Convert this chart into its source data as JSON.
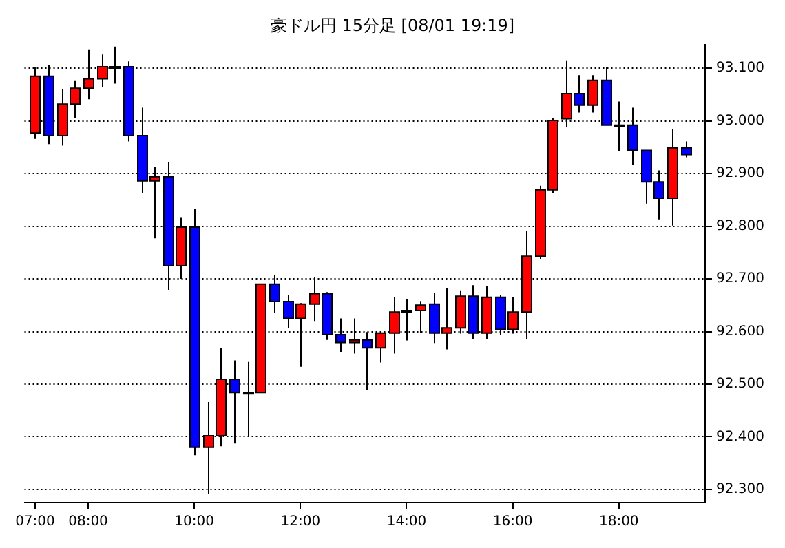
{
  "chart_data": {
    "type": "candlestick",
    "title": "豪ドル円 15分足 [08/01 19:19]",
    "x": [
      7,
      7.25,
      7.5,
      7.75,
      8,
      8.25,
      8.5,
      8.75,
      9,
      9.25,
      9.5,
      9.75,
      10,
      10.25,
      10.5,
      10.75,
      11,
      11.25,
      11.5,
      11.75,
      12,
      12.25,
      12.5,
      12.75,
      13,
      13.25,
      13.5,
      13.75,
      14,
      14.25,
      14.5,
      14.75,
      15,
      15.25,
      15.5,
      15.75,
      16,
      16.25,
      16.5,
      16.75,
      17,
      17.25,
      17.5,
      17.75,
      18,
      18.25,
      18.5,
      18.75,
      19,
      19.25
    ],
    "ohlc": [
      [
        92.977,
        93.103,
        92.966,
        93.085
      ],
      [
        93.085,
        93.106,
        92.956,
        92.972
      ],
      [
        92.972,
        93.06,
        92.953,
        93.032
      ],
      [
        93.032,
        93.077,
        93.006,
        93.062
      ],
      [
        93.062,
        93.136,
        93.041,
        93.08
      ],
      [
        93.08,
        93.126,
        93.064,
        93.103
      ],
      [
        93.103,
        93.141,
        93.071,
        93.103
      ],
      [
        93.103,
        93.113,
        92.961,
        92.972
      ],
      [
        92.972,
        93.025,
        92.863,
        92.886
      ],
      [
        92.886,
        92.912,
        92.777,
        92.894
      ],
      [
        92.894,
        92.922,
        92.679,
        92.725
      ],
      [
        92.725,
        92.817,
        92.7,
        92.798
      ],
      [
        92.798,
        92.832,
        92.365,
        92.38
      ],
      [
        92.38,
        92.466,
        92.292,
        92.402
      ],
      [
        92.402,
        92.568,
        92.382,
        92.509
      ],
      [
        92.509,
        92.545,
        92.387,
        92.484
      ],
      [
        92.484,
        92.542,
        92.401,
        92.484
      ],
      [
        92.484,
        92.69,
        92.484,
        92.69
      ],
      [
        92.69,
        92.708,
        92.636,
        92.657
      ],
      [
        92.657,
        92.67,
        92.606,
        92.625
      ],
      [
        92.625,
        92.654,
        92.533,
        92.652
      ],
      [
        92.652,
        92.703,
        92.62,
        92.672
      ],
      [
        92.672,
        92.675,
        92.584,
        92.594
      ],
      [
        92.594,
        92.625,
        92.561,
        92.579
      ],
      [
        92.579,
        92.625,
        92.558,
        92.584
      ],
      [
        92.584,
        92.599,
        92.489,
        92.569
      ],
      [
        92.569,
        92.597,
        92.541,
        92.597
      ],
      [
        92.597,
        92.666,
        92.558,
        92.637
      ],
      [
        92.637,
        92.661,
        92.583,
        92.639
      ],
      [
        92.64,
        92.658,
        92.597,
        92.65
      ],
      [
        92.652,
        92.673,
        92.578,
        92.597
      ],
      [
        92.597,
        92.682,
        92.566,
        92.607
      ],
      [
        92.607,
        92.678,
        92.596,
        92.667
      ],
      [
        92.667,
        92.688,
        92.586,
        92.597
      ],
      [
        92.597,
        92.686,
        92.586,
        92.665
      ],
      [
        92.665,
        92.67,
        92.594,
        92.604
      ],
      [
        92.604,
        92.665,
        92.596,
        92.637
      ],
      [
        92.637,
        92.791,
        92.586,
        92.743
      ],
      [
        92.743,
        92.877,
        92.738,
        92.869
      ],
      [
        92.869,
        93.005,
        92.863,
        93.001
      ],
      [
        93.004,
        93.115,
        92.988,
        93.052
      ],
      [
        93.052,
        93.087,
        93.016,
        93.03
      ],
      [
        93.03,
        93.087,
        93.016,
        93.077
      ],
      [
        93.077,
        93.103,
        92.992,
        92.992
      ],
      [
        92.992,
        93.037,
        92.943,
        92.992
      ],
      [
        92.992,
        93.025,
        92.916,
        92.944
      ],
      [
        92.944,
        92.944,
        92.843,
        92.884
      ],
      [
        92.884,
        92.906,
        92.813,
        92.853
      ],
      [
        92.853,
        92.984,
        92.801,
        92.949
      ],
      [
        92.949,
        92.961,
        92.931,
        92.936
      ]
    ],
    "colors": [
      "#ff0000",
      "#0000ff",
      "#ff0000",
      "#ff0000",
      "#ff0000",
      "#ff0000",
      "#ff0000",
      "#0000ff",
      "#0000ff",
      "#ff0000",
      "#0000ff",
      "#ff0000",
      "#0000ff",
      "#ff0000",
      "#ff0000",
      "#0000ff",
      "#ff0000",
      "#ff0000",
      "#0000ff",
      "#0000ff",
      "#ff0000",
      "#ff0000",
      "#0000ff",
      "#0000ff",
      "#ff0000",
      "#0000ff",
      "#ff0000",
      "#ff0000",
      "#ff0000",
      "#ff0000",
      "#0000ff",
      "#ff0000",
      "#ff0000",
      "#0000ff",
      "#ff0000",
      "#0000ff",
      "#ff0000",
      "#ff0000",
      "#ff0000",
      "#ff0000",
      "#ff0000",
      "#0000ff",
      "#ff0000",
      "#0000ff",
      "#ff0000",
      "#0000ff",
      "#0000ff",
      "#0000ff",
      "#ff0000",
      "#0000ff"
    ],
    "xlim": [
      6.8,
      19.625
    ],
    "xticks": [
      {
        "value": 7,
        "label": "07:00"
      },
      {
        "value": 8,
        "label": "08:00"
      },
      {
        "value": 10,
        "label": "10:00"
      },
      {
        "value": 12,
        "label": "12:00"
      },
      {
        "value": 14,
        "label": "14:00"
      },
      {
        "value": 16,
        "label": "16:00"
      },
      {
        "value": 18,
        "label": "18:00"
      }
    ],
    "ylim": [
      92.275,
      93.145
    ],
    "yticks": [
      {
        "value": 92.3,
        "label": "92.300"
      },
      {
        "value": 92.4,
        "label": "92.400"
      },
      {
        "value": 92.5,
        "label": "92.500"
      },
      {
        "value": 92.6,
        "label": "92.600"
      },
      {
        "value": 92.7,
        "label": "92.700"
      },
      {
        "value": 92.8,
        "label": "92.800"
      },
      {
        "value": 92.9,
        "label": "92.900"
      },
      {
        "value": 93,
        "label": "93.000"
      },
      {
        "value": 93.1,
        "label": "93.100"
      }
    ],
    "grid": "y"
  }
}
